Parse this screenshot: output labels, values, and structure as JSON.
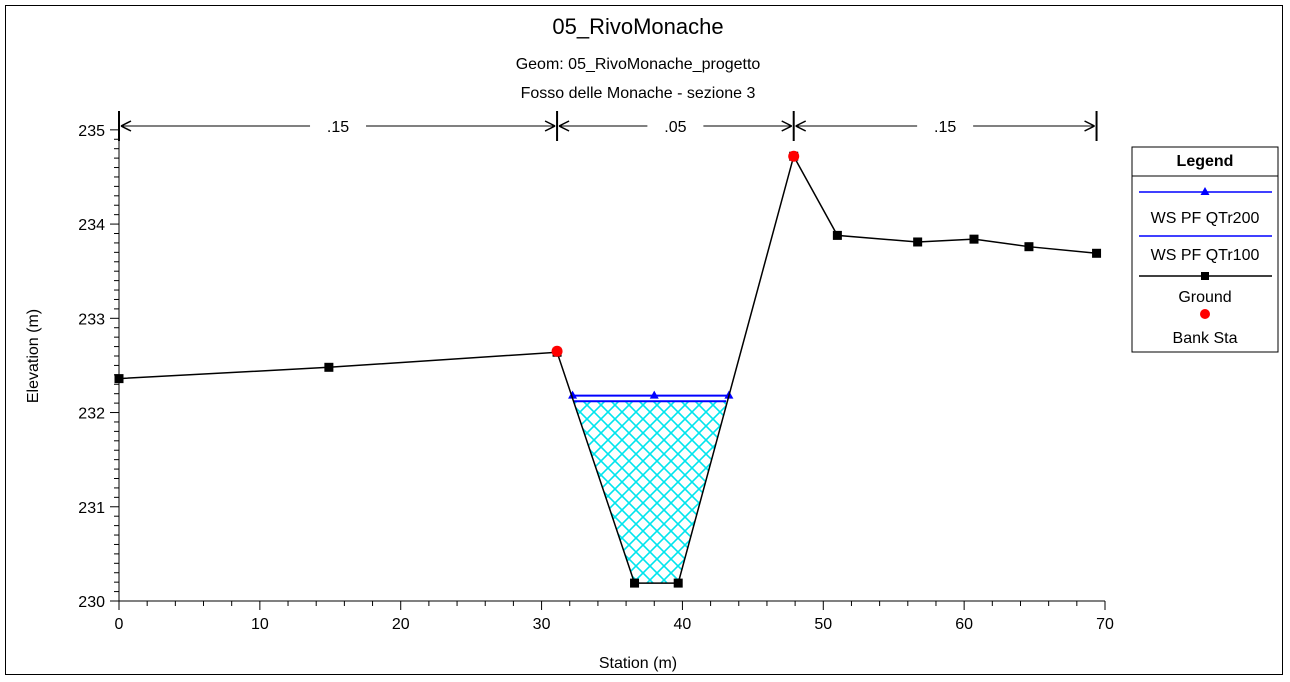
{
  "chart_data": {
    "type": "line",
    "title": "05_RivoMonache",
    "subtitle1": "Geom: 05_RivoMonache_progetto",
    "subtitle2": "Fosso delle Monache - sezione 3",
    "xlabel": "Station (m)",
    "ylabel": "Elevation (m)",
    "xlim": [
      0,
      70
    ],
    "ylim": [
      230,
      235.2
    ],
    "xticks": [
      "0",
      "10",
      "20",
      "30",
      "40",
      "50",
      "60",
      "70"
    ],
    "yticks": [
      "230",
      "231",
      "232",
      "233",
      "234",
      "235"
    ],
    "grid": false,
    "legend_position": "right",
    "legend_title": "Legend",
    "manning": [
      {
        "label": ".15",
        "from": 0,
        "to": 31.1
      },
      {
        "label": ".05",
        "from": 31.1,
        "to": 47.9
      },
      {
        "label": ".15",
        "from": 47.9,
        "to": 69.4
      }
    ],
    "series": [
      {
        "name": "WS PF QTr200",
        "color": "#0000ff",
        "marker": "triangle",
        "elevation": 232.18,
        "x": [
          32.2,
          38.0,
          43.3
        ],
        "y": [
          232.18,
          232.18,
          232.18
        ]
      },
      {
        "name": "WS PF QTr100",
        "color": "#0000ff",
        "marker": "none",
        "elevation": 232.12,
        "x": [
          32.3,
          43.1
        ],
        "y": [
          232.12,
          232.12
        ]
      },
      {
        "name": "Ground",
        "color": "#000000",
        "marker": "square",
        "x": [
          0,
          14.9,
          31.1,
          36.6,
          39.7,
          47.9,
          51.0,
          56.7,
          60.7,
          64.6,
          69.4
        ],
        "y": [
          232.36,
          232.48,
          232.64,
          230.19,
          230.19,
          234.72,
          233.88,
          233.81,
          233.84,
          233.76,
          233.69
        ]
      },
      {
        "name": "Bank Sta",
        "color": "#ff0000",
        "marker": "circle",
        "x": [
          31.1,
          47.9
        ],
        "y": [
          232.65,
          234.72
        ]
      }
    ]
  }
}
